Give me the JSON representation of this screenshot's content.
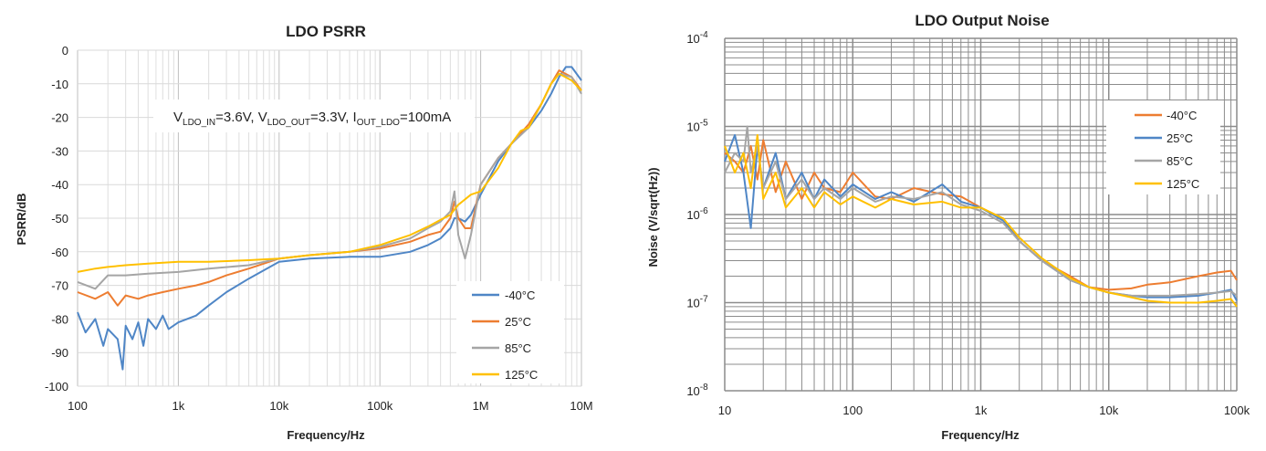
{
  "colors": {
    "-40C": "#4f86c6",
    "25C": "#ed7d31",
    "85C": "#a5a5a5",
    "125C": "#ffc000"
  },
  "chart_data": [
    {
      "type": "line",
      "title": "LDO PSRR",
      "xlabel": "Frequency/Hz",
      "ylabel": "PSRR/dB",
      "x_scale": "log",
      "xlim": [
        100,
        10000000
      ],
      "ylim": [
        -100,
        0
      ],
      "x_ticks": [
        100,
        1000,
        10000,
        100000,
        1000000,
        10000000
      ],
      "x_tick_labels": [
        "100",
        "1k",
        "10k",
        "100k",
        "1M",
        "10M"
      ],
      "y_ticks": [
        0,
        -10,
        -20,
        -30,
        -40,
        -50,
        -60,
        -70,
        -80,
        -90,
        -100
      ],
      "y_tick_labels": [
        "0",
        "-10",
        "-20",
        "-30",
        "-40",
        "-50",
        "-60",
        "-70",
        "-80",
        "-90",
        "-100"
      ],
      "annotation": {
        "V1": "V",
        "V1sub": "LDO_IN",
        "V1val": "=3.6V, ",
        "V2": "V",
        "V2sub": "LDO_OUT",
        "V2val": "=3.3V, ",
        "I": "I",
        "Isub": "OUT_LDO",
        "Ival": "=100mA"
      },
      "legend_position": "bottom-right",
      "series": [
        {
          "name": "-40°C",
          "color_key": "-40C",
          "x": [
            100,
            120,
            150,
            180,
            200,
            250,
            280,
            300,
            350,
            400,
            450,
            500,
            600,
            700,
            800,
            1000,
            1500,
            2000,
            3000,
            5000,
            10000,
            20000,
            50000,
            100000,
            200000,
            300000,
            400000,
            500000,
            550000,
            600000,
            700000,
            800000,
            1000000,
            1500000,
            2000000,
            2500000,
            3000000,
            4000000,
            5000000,
            6000000,
            7000000,
            8000000,
            10000000
          ],
          "y": [
            -78,
            -84,
            -80,
            -88,
            -83,
            -86,
            -95,
            -82,
            -86,
            -81,
            -88,
            -80,
            -83,
            -79,
            -83,
            -81,
            -79,
            -76,
            -72,
            -68,
            -63,
            -62,
            -61.5,
            -61.5,
            -60,
            -58,
            -56,
            -53,
            -50,
            -50,
            -51,
            -49,
            -43,
            -33,
            -28,
            -25,
            -23,
            -18,
            -13,
            -8,
            -5,
            -5,
            -9
          ]
        },
        {
          "name": "25°C",
          "color_key": "25C",
          "x": [
            100,
            150,
            200,
            250,
            300,
            400,
            500,
            700,
            1000,
            1500,
            2000,
            3000,
            5000,
            10000,
            20000,
            50000,
            100000,
            200000,
            300000,
            400000,
            500000,
            550000,
            600000,
            700000,
            800000,
            1000000,
            1500000,
            2000000,
            3000000,
            4000000,
            5000000,
            6000000,
            8000000,
            10000000
          ],
          "y": [
            -72,
            -74,
            -72,
            -76,
            -73,
            -74,
            -73,
            -72,
            -71,
            -70,
            -69,
            -67,
            -65,
            -62,
            -61,
            -60,
            -59,
            -57,
            -55,
            -54,
            -50,
            -45,
            -50,
            -53,
            -53,
            -40,
            -32,
            -28,
            -22,
            -16,
            -10,
            -6,
            -8,
            -12
          ]
        },
        {
          "name": "85°C",
          "color_key": "85C",
          "x": [
            100,
            150,
            200,
            300,
            500,
            1000,
            2000,
            5000,
            10000,
            20000,
            50000,
            100000,
            200000,
            300000,
            400000,
            500000,
            550000,
            600000,
            700000,
            800000,
            1000000,
            1500000,
            2000000,
            3000000,
            4000000,
            5000000,
            6000000,
            8000000,
            10000000
          ],
          "y": [
            -69,
            -71,
            -67,
            -67,
            -66.5,
            -66,
            -65,
            -64,
            -62,
            -61,
            -60,
            -58.5,
            -56,
            -53,
            -51,
            -48,
            -42,
            -55,
            -62,
            -55,
            -40,
            -32,
            -28,
            -23,
            -16,
            -10,
            -7,
            -8,
            -13
          ]
        },
        {
          "name": "125°C",
          "color_key": "125C",
          "x": [
            100,
            150,
            200,
            300,
            500,
            1000,
            2000,
            5000,
            10000,
            20000,
            50000,
            100000,
            200000,
            300000,
            400000,
            500000,
            600000,
            800000,
            1000000,
            1500000,
            2000000,
            2500000,
            3000000,
            4000000,
            5000000,
            6000000,
            8000000,
            10000000
          ],
          "y": [
            -66,
            -65,
            -64.5,
            -64,
            -63.5,
            -63,
            -63,
            -62.5,
            -62,
            -61,
            -60,
            -58,
            -55,
            -52.5,
            -50.5,
            -49,
            -46,
            -43,
            -42,
            -35,
            -28,
            -24,
            -23,
            -16,
            -10,
            -7,
            -9,
            -12
          ]
        }
      ]
    },
    {
      "type": "line",
      "title": "LDO Output Noise",
      "xlabel": "Frequency/Hz",
      "ylabel": "Noise (V/sqrt(Hz))",
      "x_scale": "log",
      "y_scale": "log",
      "xlim": [
        10,
        100000
      ],
      "ylim": [
        1e-08,
        0.0001
      ],
      "x_ticks": [
        10,
        100,
        1000,
        10000,
        100000
      ],
      "x_tick_labels": [
        "10",
        "100",
        "1k",
        "10k",
        "100k"
      ],
      "y_ticks": [
        0.0001,
        1e-05,
        1e-06,
        1e-07,
        1e-08
      ],
      "y_tick_labels": [
        [
          "10",
          "-4"
        ],
        [
          "10",
          "-5"
        ],
        [
          "10",
          "-6"
        ],
        [
          "10",
          "-7"
        ],
        [
          "10",
          "-8"
        ]
      ],
      "legend_position": "top-right",
      "series": [
        {
          "name": "-40°C",
          "color_key": "25C",
          "x": [
            10,
            12,
            14,
            16,
            18,
            20,
            25,
            30,
            40,
            50,
            60,
            80,
            100,
            150,
            200,
            300,
            500,
            700,
            1000,
            1500,
            2000,
            3000,
            5000,
            7000,
            10000,
            15000,
            20000,
            30000,
            50000,
            70000,
            90000,
            100000
          ],
          "y": [
            5e-06,
            4e-06,
            3e-06,
            6e-06,
            2.5e-06,
            7e-06,
            1.8e-06,
            4e-06,
            1.5e-06,
            3e-06,
            2e-06,
            1.8e-06,
            3e-06,
            1.6e-06,
            1.5e-06,
            2e-06,
            1.7e-06,
            1.6e-06,
            1.2e-06,
            9e-07,
            5e-07,
            3e-07,
            2e-07,
            1.5e-07,
            1.4e-07,
            1.45e-07,
            1.6e-07,
            1.7e-07,
            2e-07,
            2.2e-07,
            2.3e-07,
            1.8e-07
          ]
        },
        {
          "name": "25°C",
          "color_key": "-40C",
          "x": [
            10,
            12,
            14,
            16,
            18,
            20,
            25,
            30,
            40,
            50,
            60,
            80,
            100,
            150,
            200,
            300,
            500,
            700,
            1000,
            1500,
            2000,
            3000,
            5000,
            7000,
            10000,
            15000,
            20000,
            30000,
            50000,
            70000,
            90000,
            100000
          ],
          "y": [
            4e-06,
            8e-06,
            3e-06,
            7e-07,
            6e-06,
            2e-06,
            5e-06,
            1.5e-06,
            3e-06,
            1.5e-06,
            2.5e-06,
            1.6e-06,
            2.2e-06,
            1.5e-06,
            1.8e-06,
            1.4e-06,
            2.2e-06,
            1.4e-06,
            1.2e-06,
            8.5e-07,
            5e-07,
            3e-07,
            1.8e-07,
            1.5e-07,
            1.3e-07,
            1.2e-07,
            1.15e-07,
            1.15e-07,
            1.2e-07,
            1.3e-07,
            1.4e-07,
            1.05e-07
          ]
        },
        {
          "name": "85°C",
          "color_key": "85C",
          "x": [
            10,
            12,
            14,
            15,
            16,
            18,
            20,
            25,
            30,
            40,
            50,
            60,
            80,
            100,
            150,
            200,
            300,
            500,
            700,
            1000,
            1500,
            2000,
            3000,
            5000,
            7000,
            10000,
            15000,
            20000,
            30000,
            50000,
            70000,
            90000,
            100000
          ],
          "y": [
            3e-06,
            5e-06,
            4e-06,
            1e-05,
            3e-06,
            6e-06,
            2e-06,
            4e-06,
            1.5e-06,
            2.5e-06,
            1.5e-06,
            2e-06,
            1.5e-06,
            2e-06,
            1.4e-06,
            1.6e-06,
            1.5e-06,
            1.8e-06,
            1.3e-06,
            1.1e-06,
            8e-07,
            5e-07,
            3e-07,
            1.8e-07,
            1.5e-07,
            1.3e-07,
            1.2e-07,
            1.2e-07,
            1.2e-07,
            1.25e-07,
            1.3e-07,
            1.35e-07,
            1.2e-07
          ]
        },
        {
          "name": "125°C",
          "color_key": "125C",
          "x": [
            10,
            12,
            14,
            16,
            18,
            20,
            25,
            30,
            40,
            50,
            60,
            80,
            100,
            150,
            200,
            300,
            500,
            700,
            1000,
            1500,
            2000,
            3000,
            5000,
            7000,
            10000,
            15000,
            20000,
            30000,
            50000,
            70000,
            90000,
            100000
          ],
          "y": [
            6e-06,
            3e-06,
            5e-06,
            2e-06,
            8e-06,
            1.5e-06,
            3e-06,
            1.2e-06,
            2e-06,
            1.2e-06,
            1.8e-06,
            1.3e-06,
            1.6e-06,
            1.2e-06,
            1.5e-06,
            1.3e-06,
            1.4e-06,
            1.2e-06,
            1.2e-06,
            9e-07,
            5.5e-07,
            3.2e-07,
            1.9e-07,
            1.5e-07,
            1.3e-07,
            1.15e-07,
            1.05e-07,
            1e-07,
            1e-07,
            1.05e-07,
            1.1e-07,
            9e-08
          ]
        }
      ]
    }
  ]
}
